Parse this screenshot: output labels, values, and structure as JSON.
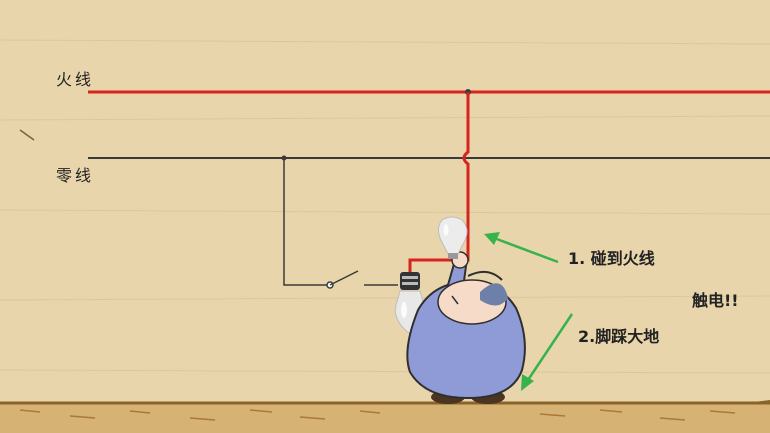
{
  "diagram": {
    "wires": {
      "live_label": "火线",
      "neutral_label": "零线"
    },
    "annotations": {
      "touch_live": "1. 碰到火线",
      "feet_ground": "2.脚踩大地",
      "result": "触电!!"
    },
    "colors": {
      "background": "#e9d5ac",
      "live_wire": "#d8241f",
      "neutral_wire": "#3a3a3a",
      "arrow": "#38b24a",
      "ground": "#b3863f",
      "figure_body": "#8f9bd6",
      "figure_face": "#f6dcc8"
    }
  }
}
